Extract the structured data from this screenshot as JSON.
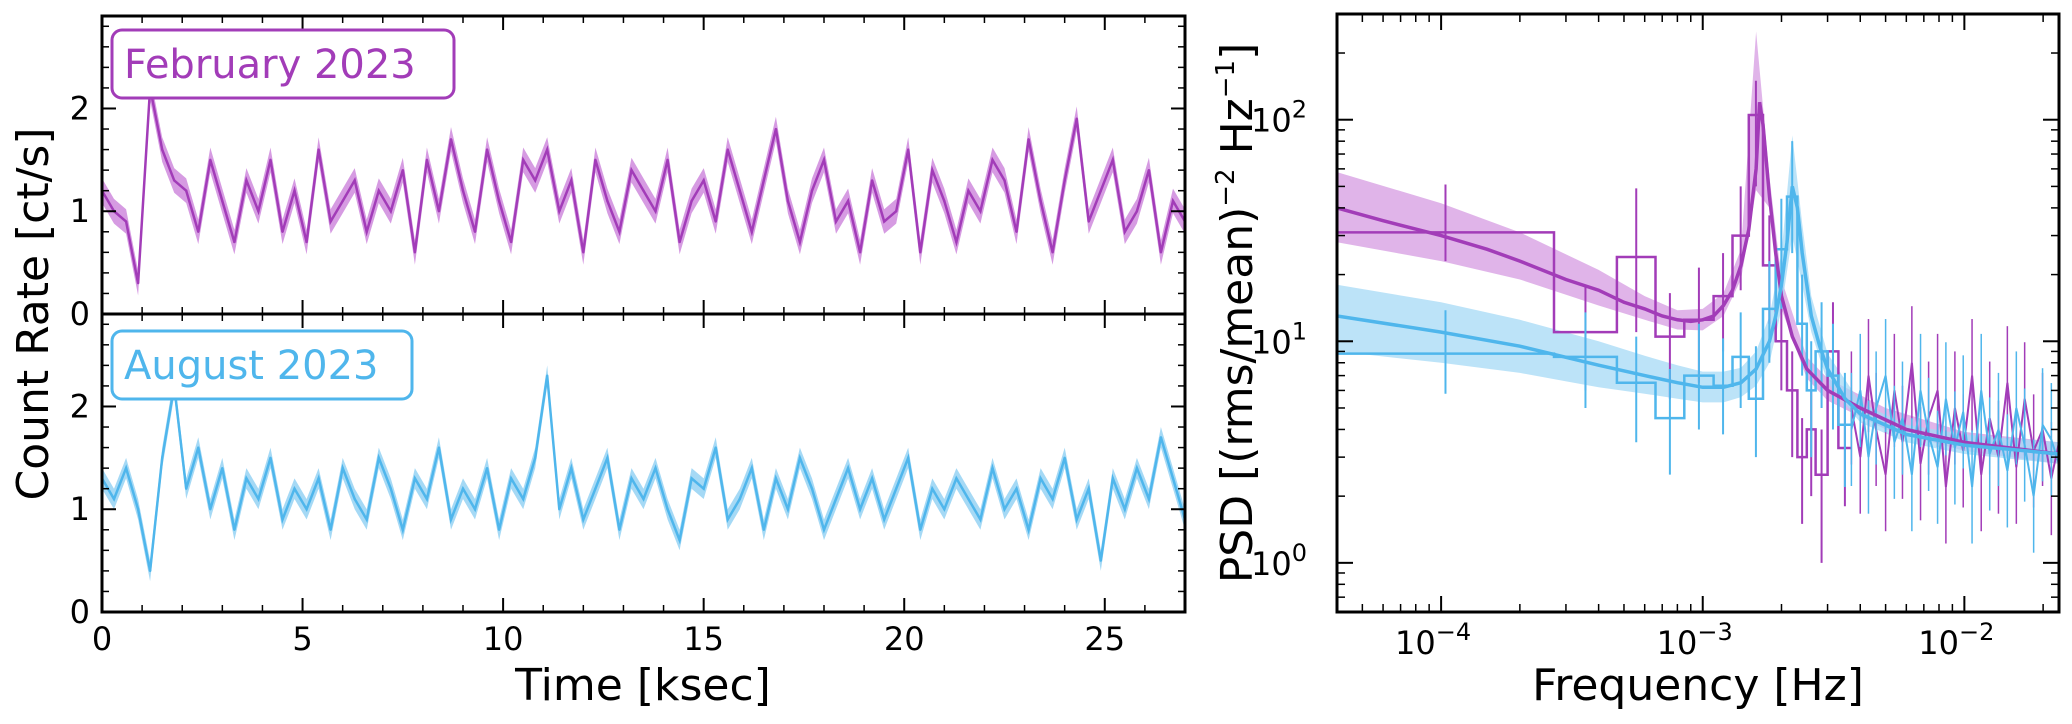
{
  "chart_data": [
    {
      "type": "line",
      "panel": "top-left",
      "legend_label": "February 2023",
      "legend_placement": "top-left",
      "color": "#A23CB8",
      "band_color": "#D69BE2",
      "xlim": [
        0,
        27
      ],
      "ylim": [
        0,
        2.9
      ],
      "yticks": [
        0,
        1,
        2
      ],
      "ytick_labels": [
        "0",
        "1",
        "2"
      ],
      "x": [
        0,
        0.3,
        0.6,
        0.9,
        1.2,
        1.5,
        1.8,
        2.1,
        2.4,
        2.7,
        3.0,
        3.3,
        3.6,
        3.9,
        4.2,
        4.5,
        4.8,
        5.1,
        5.4,
        5.7,
        6.0,
        6.3,
        6.6,
        6.9,
        7.2,
        7.5,
        7.8,
        8.1,
        8.4,
        8.7,
        9.0,
        9.3,
        9.6,
        9.9,
        10.2,
        10.5,
        10.8,
        11.1,
        11.4,
        11.7,
        12.0,
        12.3,
        12.6,
        12.9,
        13.2,
        13.5,
        13.8,
        14.1,
        14.4,
        14.7,
        15.0,
        15.3,
        15.6,
        15.9,
        16.2,
        16.5,
        16.8,
        17.1,
        17.4,
        17.7,
        18.0,
        18.3,
        18.6,
        18.9,
        19.2,
        19.5,
        19.8,
        20.1,
        20.4,
        20.7,
        21.0,
        21.3,
        21.6,
        21.9,
        22.2,
        22.5,
        22.8,
        23.1,
        23.4,
        23.7,
        24.0,
        24.3,
        24.6,
        24.9,
        25.2,
        25.5,
        25.8,
        26.1,
        26.4,
        26.7,
        27.0
      ],
      "y": [
        1.2,
        1.0,
        0.9,
        0.3,
        2.2,
        1.6,
        1.3,
        1.2,
        0.8,
        1.5,
        1.1,
        0.7,
        1.3,
        1.0,
        1.5,
        0.8,
        1.2,
        0.7,
        1.6,
        0.9,
        1.1,
        1.3,
        0.8,
        1.2,
        1.0,
        1.4,
        0.6,
        1.5,
        1.0,
        1.7,
        1.2,
        0.8,
        1.6,
        1.1,
        0.7,
        1.5,
        1.3,
        1.6,
        1.0,
        1.3,
        0.6,
        1.5,
        1.1,
        0.8,
        1.4,
        1.2,
        1.0,
        1.5,
        0.7,
        1.1,
        1.3,
        0.9,
        1.6,
        1.2,
        0.8,
        1.3,
        1.8,
        1.1,
        0.7,
        1.2,
        1.5,
        0.9,
        1.1,
        0.6,
        1.3,
        0.9,
        1.0,
        1.6,
        0.6,
        1.4,
        1.1,
        0.7,
        1.2,
        1.0,
        1.5,
        1.3,
        0.8,
        1.7,
        1.1,
        0.6,
        1.3,
        1.9,
        0.9,
        1.2,
        1.5,
        0.8,
        1.0,
        1.4,
        0.6,
        1.1,
        0.9
      ],
      "band_halfwidth": 0.12
    },
    {
      "type": "line",
      "panel": "bottom-left",
      "legend_label": "August 2023",
      "legend_placement": "top-left",
      "color": "#4FB6EC",
      "band_color": "#A5D9F5",
      "xlim": [
        0,
        27
      ],
      "ylim": [
        0,
        2.9
      ],
      "yticks": [
        0,
        1,
        2
      ],
      "ytick_labels": [
        "0",
        "1",
        "2"
      ],
      "xticks": [
        0,
        5,
        10,
        15,
        20,
        25
      ],
      "xtick_labels": [
        "0",
        "5",
        "10",
        "15",
        "20",
        "25"
      ],
      "xlabel": "Time [ksec]",
      "shared_ylabel": "Count Rate [ct/s]",
      "x": [
        0,
        0.3,
        0.6,
        0.9,
        1.2,
        1.5,
        1.8,
        2.1,
        2.4,
        2.7,
        3.0,
        3.3,
        3.6,
        3.9,
        4.2,
        4.5,
        4.8,
        5.1,
        5.4,
        5.7,
        6.0,
        6.3,
        6.6,
        6.9,
        7.2,
        7.5,
        7.8,
        8.1,
        8.4,
        8.7,
        9.0,
        9.3,
        9.6,
        9.9,
        10.2,
        10.5,
        10.8,
        11.1,
        11.4,
        11.7,
        12.0,
        12.3,
        12.6,
        12.9,
        13.2,
        13.5,
        13.8,
        14.1,
        14.4,
        14.7,
        15.0,
        15.3,
        15.6,
        15.9,
        16.2,
        16.5,
        16.8,
        17.1,
        17.4,
        17.7,
        18.0,
        18.3,
        18.6,
        18.9,
        19.2,
        19.5,
        19.8,
        20.1,
        20.4,
        20.7,
        21.0,
        21.3,
        21.6,
        21.9,
        22.2,
        22.5,
        22.8,
        23.1,
        23.4,
        23.7,
        24.0,
        24.3,
        24.6,
        24.9,
        25.2,
        25.5,
        25.8,
        26.1,
        26.4,
        26.7,
        27.0
      ],
      "y": [
        1.3,
        1.1,
        1.4,
        1.0,
        0.4,
        1.5,
        2.2,
        1.2,
        1.6,
        1.0,
        1.4,
        0.8,
        1.3,
        1.1,
        1.5,
        0.9,
        1.2,
        1.0,
        1.3,
        0.8,
        1.4,
        1.1,
        0.9,
        1.5,
        1.2,
        0.8,
        1.3,
        1.1,
        1.6,
        0.9,
        1.2,
        1.0,
        1.4,
        0.8,
        1.3,
        1.1,
        1.5,
        2.3,
        1.0,
        1.4,
        0.9,
        1.2,
        1.5,
        0.8,
        1.3,
        1.1,
        1.4,
        1.0,
        0.7,
        1.3,
        1.2,
        1.6,
        0.9,
        1.1,
        1.4,
        0.8,
        1.3,
        1.0,
        1.5,
        1.2,
        0.8,
        1.1,
        1.4,
        1.0,
        1.3,
        0.9,
        1.2,
        1.5,
        0.8,
        1.2,
        1.0,
        1.3,
        1.1,
        0.9,
        1.4,
        1.0,
        1.2,
        0.8,
        1.3,
        1.1,
        1.5,
        0.9,
        1.2,
        0.5,
        1.3,
        1.0,
        1.4,
        1.1,
        1.7,
        1.3,
        0.9
      ],
      "band_halfwidth": 0.1
    },
    {
      "type": "line",
      "panel": "right",
      "xscale": "log",
      "yscale": "log",
      "xlim": [
        4e-05,
        0.023
      ],
      "ylim": [
        0.6,
        300
      ],
      "xticks": [
        0.0001,
        0.001,
        0.01
      ],
      "xtick_labels": [
        {
          "base": "10",
          "exp": "−4"
        },
        {
          "base": "10",
          "exp": "−3"
        },
        {
          "base": "10",
          "exp": "−2"
        }
      ],
      "yticks": [
        1,
        10,
        100
      ],
      "ytick_labels": [
        {
          "base": "10",
          "exp": "0"
        },
        {
          "base": "10",
          "exp": "1"
        },
        {
          "base": "10",
          "exp": "2"
        }
      ],
      "xlabel": "Frequency [Hz]",
      "ylabel_main": "PSD [(rms/mean)",
      "ylabel_exp1": "−2",
      "ylabel_unit": " Hz",
      "ylabel_exp2": "−1",
      "ylabel_end": "]",
      "series": [
        {
          "id": "feb",
          "color": "#A23CB8",
          "band_color": "#D69BE2",
          "model_x": [
            4e-05,
            6e-05,
            0.0001,
            0.00015,
            0.0002,
            0.0003,
            0.0004,
            0.0005,
            0.0006,
            0.0007,
            0.0008,
            0.0009,
            0.001,
            0.0011,
            0.0012,
            0.0013,
            0.0014,
            0.0015,
            0.0016,
            0.00165,
            0.0017,
            0.0018,
            0.0019,
            0.002,
            0.0022,
            0.0025,
            0.003,
            0.004,
            0.006,
            0.01,
            0.023
          ],
          "model_y": [
            40,
            35,
            30,
            26,
            23,
            19,
            17,
            15,
            14,
            13,
            12.5,
            12.3,
            12.5,
            13,
            14.5,
            17,
            22,
            32,
            60,
            120,
            95,
            45,
            25,
            16,
            10.5,
            7.5,
            6,
            5,
            4,
            3.5,
            3.1
          ],
          "band_x": [
            4e-05,
            0.0001,
            0.0002,
            0.0004,
            0.0006,
            0.0008,
            0.001,
            0.0012,
            0.0014,
            0.0016,
            0.0018,
            0.002,
            0.0025,
            0.003,
            0.005,
            0.01,
            0.023
          ],
          "band_lo": [
            28,
            23,
            19,
            14.5,
            12.5,
            11.3,
            11.2,
            13,
            19,
            48,
            40,
            14,
            6.8,
            5.4,
            4,
            3.2,
            2.8
          ],
          "band_hi": [
            58,
            42,
            31,
            21,
            16,
            13.8,
            14,
            16.5,
            26,
            250,
            55,
            19,
            8.5,
            6.8,
            5,
            3.9,
            3.5
          ],
          "bin_edges": [
            4e-05,
            0.00027,
            0.00047,
            0.00066,
            0.00085,
            0.0011,
            0.0013,
            0.0015,
            0.0017,
            0.0019,
            0.0021,
            0.0023,
            0.0025,
            0.0027,
            0.003,
            0.0033,
            0.0037
          ],
          "bin_values": [
            31,
            11,
            24,
            10.5,
            12.5,
            16,
            30,
            105,
            22,
            10,
            6,
            3,
            4,
            2.5,
            9,
            3.3
          ],
          "bin_err_lo": [
            8,
            5,
            13,
            5,
            6,
            7,
            13,
            55,
            10,
            4,
            3,
            1.5,
            2,
            1.5,
            4,
            1.5
          ],
          "bin_err_hi": [
            20,
            7,
            25,
            6,
            9,
            9,
            20,
            45,
            15,
            5,
            3,
            1.5,
            2,
            1.5,
            6,
            2
          ],
          "noise_x": [
            0.0037,
            0.004,
            0.0043,
            0.0046,
            0.005,
            0.0054,
            0.0058,
            0.0063,
            0.0068,
            0.0073,
            0.0079,
            0.0085,
            0.0092,
            0.0099,
            0.0107,
            0.0116,
            0.0125,
            0.0135,
            0.0146,
            0.0158,
            0.017,
            0.0184,
            0.0199,
            0.0215,
            0.023
          ],
          "noise_y": [
            5,
            3,
            7,
            4,
            2.5,
            6,
            3.5,
            8,
            2.8,
            4.5,
            6,
            2.2,
            5,
            3.2,
            7,
            2.5,
            4.5,
            3,
            6.5,
            2.7,
            5.5,
            3.2,
            4,
            2.4,
            3.5
          ]
        },
        {
          "id": "aug",
          "color": "#4FB6EC",
          "band_color": "#A5D9F5",
          "model_x": [
            4e-05,
            0.0001,
            0.0002,
            0.0004,
            0.0006,
            0.0008,
            0.001,
            0.0012,
            0.0014,
            0.0016,
            0.0018,
            0.0019,
            0.002,
            0.0021,
            0.0022,
            0.0023,
            0.0024,
            0.0026,
            0.0028,
            0.003,
            0.0035,
            0.004,
            0.006,
            0.01,
            0.023
          ],
          "model_y": [
            13,
            11,
            9.5,
            7.8,
            7,
            6.5,
            6.2,
            6.2,
            6.5,
            7.5,
            10,
            13,
            18,
            28,
            50,
            40,
            25,
            13,
            9.5,
            7.5,
            5.5,
            4.7,
            3.8,
            3.4,
            3.1
          ],
          "band_x": [
            4e-05,
            0.0001,
            0.0002,
            0.0004,
            0.0006,
            0.0008,
            0.001,
            0.0012,
            0.0014,
            0.0016,
            0.0018,
            0.002,
            0.0022,
            0.0024,
            0.0026,
            0.003,
            0.004,
            0.006,
            0.01,
            0.023
          ],
          "band_lo": [
            9,
            8,
            7.2,
            6.2,
            5.8,
            5.5,
            5.3,
            5.3,
            5.6,
            6.3,
            8,
            14,
            30,
            18,
            11,
            6.5,
            4.3,
            3.5,
            3.1,
            2.8
          ],
          "band_hi": [
            18,
            15,
            12.5,
            10,
            8.6,
            7.8,
            7.3,
            7.3,
            7.6,
            9,
            13,
            25,
            85,
            34,
            16,
            8.8,
            5.3,
            4.2,
            3.8,
            3.5
          ],
          "bin_edges": [
            4e-05,
            0.00027,
            0.00047,
            0.00066,
            0.00085,
            0.0011,
            0.0013,
            0.0015,
            0.0017,
            0.0019,
            0.0021,
            0.0023,
            0.0025,
            0.0027,
            0.003,
            0.0033,
            0.0037
          ],
          "bin_values": [
            8.8,
            8.5,
            6.5,
            4.5,
            7,
            6.3,
            8.5,
            5.5,
            14,
            26,
            45,
            12,
            6,
            9,
            7,
            4.2
          ],
          "bin_err_lo": [
            3,
            3.5,
            3,
            2,
            3,
            2.5,
            3.5,
            2.5,
            6,
            12,
            20,
            5,
            3,
            4,
            3,
            2
          ],
          "bin_err_hi": [
            5,
            5,
            4,
            3,
            5,
            4,
            5,
            4,
            9,
            18,
            35,
            8,
            4,
            6,
            5,
            3
          ],
          "noise_x": [
            0.0037,
            0.004,
            0.0043,
            0.0046,
            0.005,
            0.0054,
            0.0058,
            0.0063,
            0.0068,
            0.0073,
            0.0079,
            0.0085,
            0.0092,
            0.0099,
            0.0107,
            0.0116,
            0.0125,
            0.0135,
            0.0146,
            0.0158,
            0.017,
            0.0184,
            0.0199,
            0.0215,
            0.023
          ],
          "noise_y": [
            4,
            6,
            3,
            5,
            7,
            3.5,
            4.5,
            2.5,
            6,
            3.8,
            2.7,
            5.5,
            3.3,
            4.8,
            2.2,
            6,
            3.1,
            4,
            2.6,
            5,
            3.4,
            2,
            4.2,
            3.6,
            2.8
          ]
        }
      ]
    }
  ]
}
